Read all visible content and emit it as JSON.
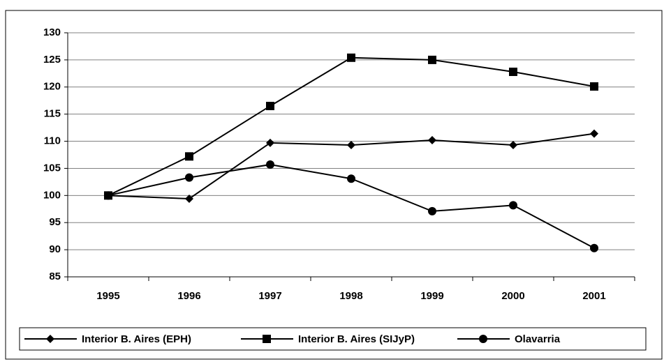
{
  "chart_data": {
    "type": "line",
    "categories": [
      "1995",
      "1996",
      "1997",
      "1998",
      "1999",
      "2000",
      "2001"
    ],
    "series": [
      {
        "name": "Interior B. Aires (EPH)",
        "color": "#000000",
        "marker": "diamond",
        "values": [
          100,
          99.4,
          109.7,
          109.3,
          110.2,
          109.3,
          111.4
        ]
      },
      {
        "name": "Interior B. Aires (SIJyP)",
        "color": "#000000",
        "marker": "square",
        "values": [
          100,
          107.2,
          116.5,
          125.4,
          125.0,
          122.8,
          120.1
        ]
      },
      {
        "name": "Olavarria",
        "color": "#000000",
        "marker": "circle",
        "values": [
          100,
          103.3,
          105.7,
          103.1,
          97.1,
          98.2,
          90.3
        ]
      }
    ],
    "ylim": [
      85,
      130
    ],
    "yticks": [
      85,
      90,
      95,
      100,
      105,
      110,
      115,
      120,
      125,
      130
    ],
    "grid": true,
    "legend": "bottom"
  }
}
